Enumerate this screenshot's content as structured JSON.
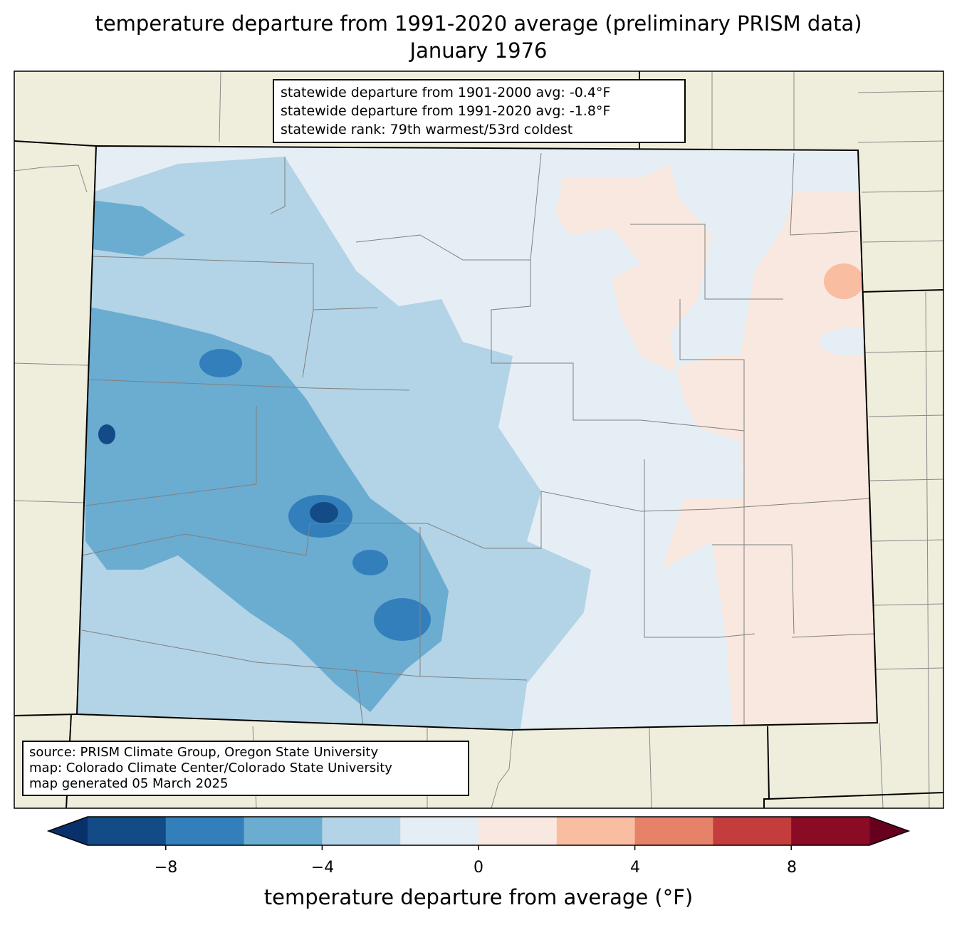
{
  "title": "temperature departure from 1991-2020 average (preliminary PRISM data)",
  "subtitle": "January 1976",
  "stats": {
    "line1": "statewide departure from 1901-2000 avg: -0.4°F",
    "line2": "statewide departure from 1991-2020 avg: -1.8°F",
    "line3": "statewide rank: 79th warmest/53rd coldest"
  },
  "source": {
    "line1": "source: PRISM Climate Group, Oregon State University",
    "line2": "map: Colorado Climate Center/Colorado State University",
    "line3": "map generated 05 March 2025"
  },
  "colorbar": {
    "label": "temperature departure from average (°F)",
    "ticks": [
      "−8",
      "−4",
      "0",
      "4",
      "8"
    ],
    "bounds": [
      -10,
      -8,
      -6,
      -4,
      -2,
      0,
      2,
      4,
      6,
      8,
      10
    ],
    "colors": [
      "#134b87",
      "#327fbb",
      "#6bacd1",
      "#b3d3e6",
      "#e5eef4",
      "#f9e8df",
      "#f9bda2",
      "#e58267",
      "#c43c3c",
      "#8a0b24"
    ],
    "under_color": "#08306b",
    "over_color": "#67001f"
  },
  "colors": {
    "land": "#efeedc"
  }
}
